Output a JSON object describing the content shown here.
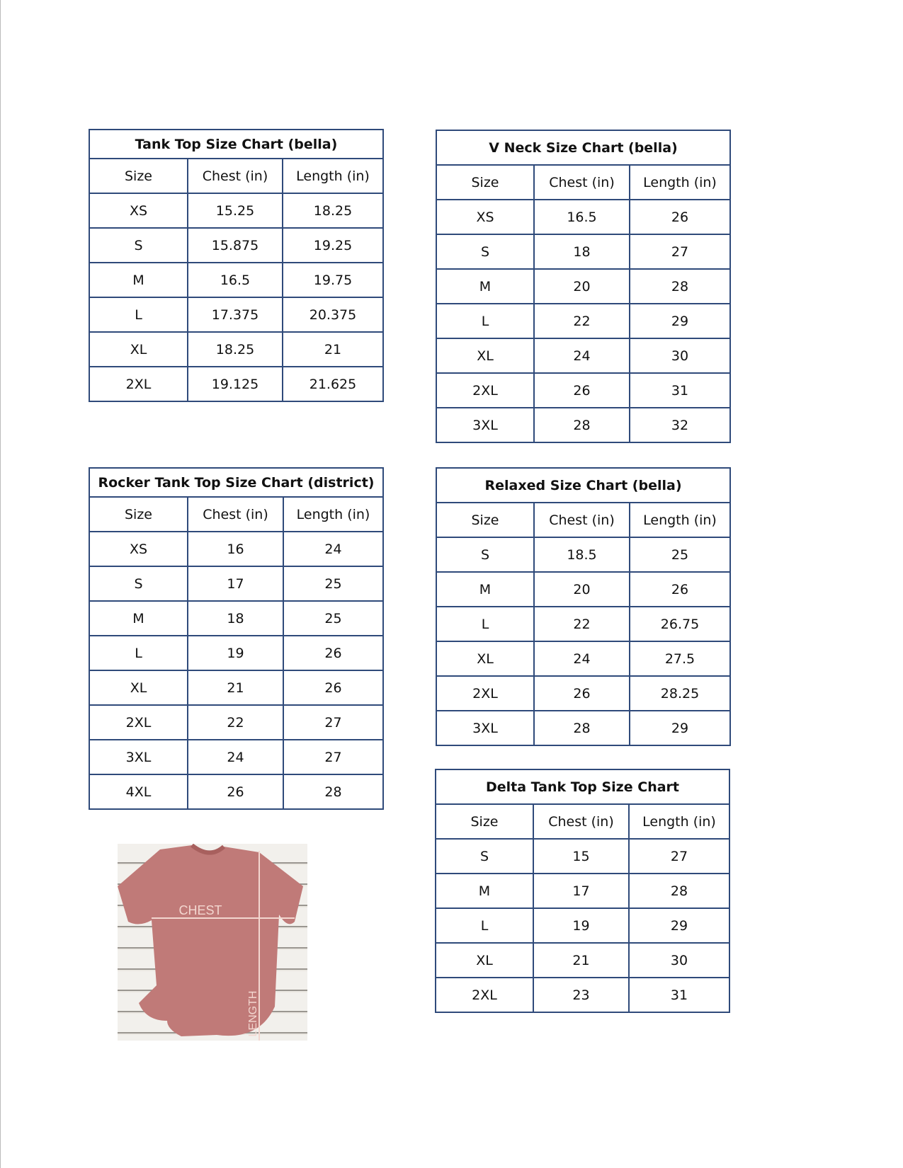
{
  "tables": [
    {
      "title": "Tank Top Size Chart  (bella)",
      "headers": [
        "Size",
        "Chest (in)",
        "Length (in)"
      ],
      "rows": [
        [
          "XS",
          "15.25",
          "18.25"
        ],
        [
          "S",
          "15.875",
          "19.25"
        ],
        [
          "M",
          "16.5",
          "19.75"
        ],
        [
          "L",
          "17.375",
          "20.375"
        ],
        [
          "XL",
          "18.25",
          "21"
        ],
        [
          "2XL",
          "19.125",
          "21.625"
        ]
      ]
    },
    {
      "title": "V Neck Size Chart  (bella)",
      "headers": [
        "Size",
        "Chest (in)",
        "Length (in)"
      ],
      "rows": [
        [
          "XS",
          "16.5",
          "26"
        ],
        [
          "S",
          "18",
          "27"
        ],
        [
          "M",
          "20",
          "28"
        ],
        [
          "L",
          "22",
          "29"
        ],
        [
          "XL",
          "24",
          "30"
        ],
        [
          "2XL",
          "26",
          "31"
        ],
        [
          "3XL",
          "28",
          "32"
        ]
      ]
    },
    {
      "title": "Rocker Tank Top Size Chart (district)",
      "headers": [
        "Size",
        "Chest (in)",
        "Length (in)"
      ],
      "rows": [
        [
          "XS",
          "16",
          "24"
        ],
        [
          "S",
          "17",
          "25"
        ],
        [
          "M",
          "18",
          "25"
        ],
        [
          "L",
          "19",
          "26"
        ],
        [
          "XL",
          "21",
          "26"
        ],
        [
          "2XL",
          "22",
          "27"
        ],
        [
          "3XL",
          "24",
          "27"
        ],
        [
          "4XL",
          "26",
          "28"
        ]
      ]
    },
    {
      "title": "Relaxed Size Chart (bella)",
      "headers": [
        "Size",
        "Chest (in)",
        "Length (in)"
      ],
      "rows": [
        [
          "S",
          "18.5",
          "25"
        ],
        [
          "M",
          "20",
          "26"
        ],
        [
          "L",
          "22",
          "26.75"
        ],
        [
          "XL",
          "24",
          "27.5"
        ],
        [
          "2XL",
          "26",
          "28.25"
        ],
        [
          "3XL",
          "28",
          "29"
        ]
      ]
    },
    {
      "title": "Delta Tank Top Size Chart",
      "headers": [
        "Size",
        "Chest (in)",
        "Length (in)"
      ],
      "rows": [
        [
          "S",
          "15",
          "27"
        ],
        [
          "M",
          "17",
          "28"
        ],
        [
          "L",
          "19",
          "29"
        ],
        [
          "XL",
          "21",
          "30"
        ],
        [
          "2XL",
          "23",
          "31"
        ]
      ]
    }
  ],
  "photo": {
    "chest_label": "CHEST",
    "length_label": "LENGTH",
    "shirt_color": "#c07a78"
  },
  "colors": {
    "border": "#2f4a7a"
  }
}
